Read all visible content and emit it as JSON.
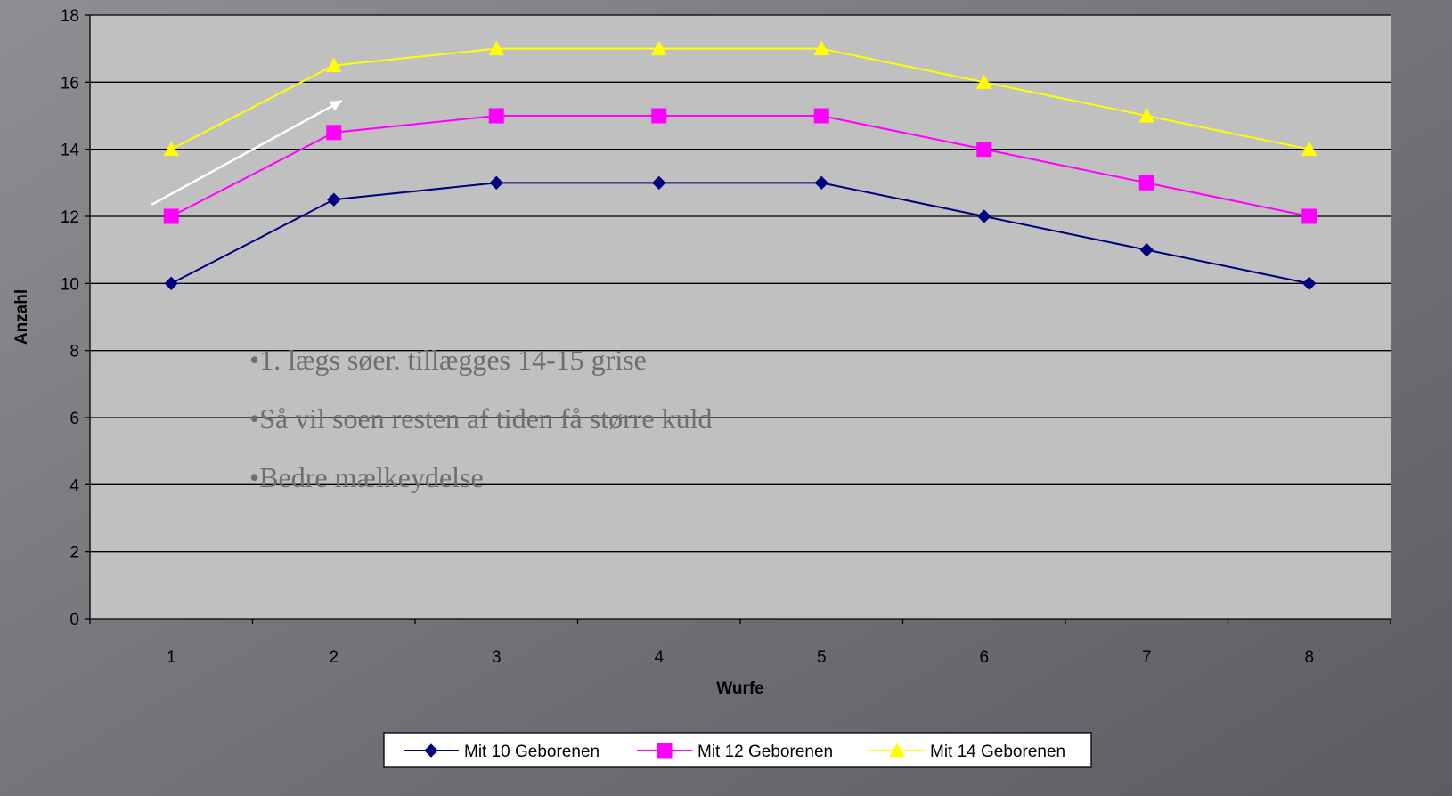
{
  "chart_data": {
    "type": "line",
    "title": "",
    "xlabel": "Wurfe",
    "ylabel": "Anzahl",
    "x": [
      1,
      2,
      3,
      4,
      5,
      6,
      7,
      8
    ],
    "ylim": [
      0,
      18
    ],
    "yticks": [
      0,
      2,
      4,
      6,
      8,
      10,
      12,
      14,
      16,
      18
    ],
    "grid": "horizontal",
    "legend_position": "bottom",
    "series": [
      {
        "name": "Mit 10 Geborenen",
        "values": [
          10,
          12.5,
          13,
          13,
          13,
          12,
          11,
          10
        ],
        "color": "#000080",
        "marker": "diamond"
      },
      {
        "name": "Mit 12 Geborenen",
        "values": [
          12,
          14.5,
          15,
          15,
          15,
          14,
          13,
          12
        ],
        "color": "#ff00ff",
        "marker": "square"
      },
      {
        "name": "Mit 14 Geborenen",
        "values": [
          14,
          16.5,
          17,
          17,
          17,
          16,
          15,
          14
        ],
        "color": "#ffff00",
        "marker": "triangle"
      }
    ],
    "annotations": [
      "•1. lægs søer. tillægges 14-15 grise",
      "•Så vil soen resten af tiden få større kuld",
      "•Bedre mælkeydelse"
    ],
    "arrow": {
      "from": [
        1,
        12.35
      ],
      "to": [
        2.05,
        15.45
      ],
      "color": "#ffffff"
    }
  }
}
